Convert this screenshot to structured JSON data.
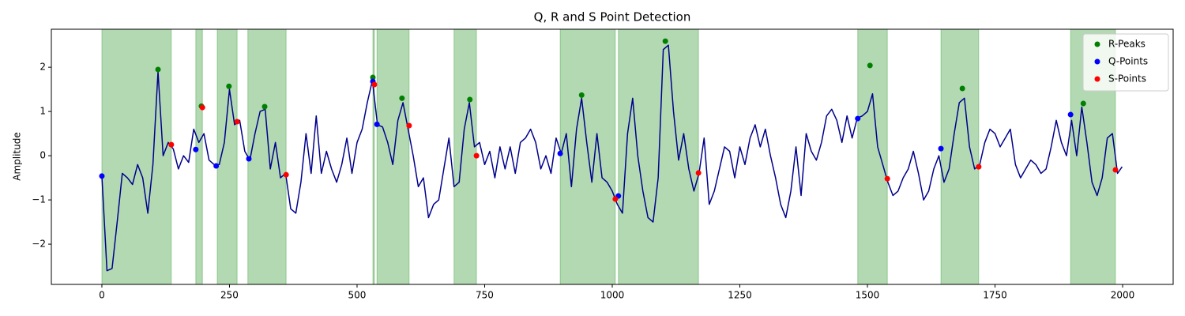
{
  "chart_data": {
    "type": "line",
    "title": "Q, R and S Point Detection",
    "ylabel": "Amplitude",
    "color": "#00008b",
    "x": [
      0,
      10,
      20,
      30,
      40,
      50,
      60,
      70,
      80,
      90,
      100,
      110,
      120,
      130,
      140,
      150,
      160,
      170,
      180,
      190,
      200,
      210,
      220,
      230,
      240,
      250,
      260,
      270,
      280,
      290,
      300,
      310,
      320,
      330,
      340,
      350,
      360,
      370,
      380,
      390,
      400,
      410,
      420,
      430,
      440,
      450,
      460,
      470,
      480,
      490,
      500,
      510,
      520,
      530,
      540,
      550,
      560,
      570,
      580,
      590,
      600,
      610,
      620,
      630,
      640,
      650,
      660,
      670,
      680,
      690,
      700,
      710,
      720,
      730,
      740,
      750,
      760,
      770,
      780,
      790,
      800,
      810,
      820,
      830,
      840,
      850,
      860,
      870,
      880,
      890,
      900,
      910,
      920,
      930,
      940,
      950,
      960,
      970,
      980,
      990,
      1000,
      1010,
      1020,
      1030,
      1040,
      1050,
      1060,
      1070,
      1080,
      1090,
      1100,
      1110,
      1120,
      1130,
      1140,
      1150,
      1160,
      1170,
      1180,
      1190,
      1200,
      1210,
      1220,
      1230,
      1240,
      1250,
      1260,
      1270,
      1280,
      1290,
      1300,
      1310,
      1320,
      1330,
      1340,
      1350,
      1360,
      1370,
      1380,
      1390,
      1400,
      1410,
      1420,
      1430,
      1440,
      1450,
      1460,
      1470,
      1480,
      1490,
      1500,
      1510,
      1520,
      1530,
      1540,
      1550,
      1560,
      1570,
      1580,
      1590,
      1600,
      1610,
      1620,
      1630,
      1640,
      1650,
      1660,
      1670,
      1680,
      1690,
      1700,
      1710,
      1720,
      1730,
      1740,
      1750,
      1760,
      1770,
      1780,
      1790,
      1800,
      1810,
      1820,
      1830,
      1840,
      1850,
      1860,
      1870,
      1880,
      1890,
      1900,
      1910,
      1920,
      1930,
      1940,
      1950,
      1960,
      1970,
      1980,
      1990,
      1999
    ],
    "values": [
      -0.46,
      -2.6,
      -2.55,
      -1.5,
      -0.4,
      -0.5,
      -0.65,
      -0.2,
      -0.5,
      -1.3,
      -0.2,
      1.9,
      0.0,
      0.3,
      0.15,
      -0.3,
      0.0,
      -0.15,
      0.6,
      0.3,
      0.5,
      -0.1,
      -0.2,
      -0.2,
      0.3,
      1.5,
      0.7,
      0.8,
      0.1,
      -0.1,
      0.5,
      1.0,
      1.05,
      -0.3,
      0.3,
      -0.5,
      -0.4,
      -1.2,
      -1.3,
      -0.6,
      0.5,
      -0.4,
      0.9,
      -0.4,
      0.1,
      -0.3,
      -0.6,
      -0.2,
      0.4,
      -0.4,
      0.3,
      0.6,
      1.2,
      1.7,
      0.7,
      0.65,
      0.3,
      -0.2,
      0.8,
      1.2,
      0.6,
      0.0,
      -0.7,
      -0.5,
      -1.4,
      -1.1,
      -1.0,
      -0.3,
      0.4,
      -0.7,
      -0.6,
      0.6,
      1.2,
      0.2,
      0.3,
      -0.2,
      0.1,
      -0.5,
      0.2,
      -0.3,
      0.2,
      -0.4,
      0.3,
      0.4,
      0.6,
      0.3,
      -0.3,
      0.0,
      -0.4,
      0.4,
      0.05,
      0.5,
      -0.7,
      0.6,
      1.3,
      0.3,
      -0.6,
      0.5,
      -0.5,
      -0.6,
      -0.8,
      -1.1,
      -1.3,
      0.5,
      1.3,
      0.0,
      -0.8,
      -1.4,
      -1.5,
      -0.5,
      2.4,
      2.5,
      1.0,
      -0.1,
      0.5,
      -0.3,
      -0.8,
      -0.4,
      0.4,
      -1.1,
      -0.8,
      -0.3,
      0.2,
      0.1,
      -0.5,
      0.2,
      -0.2,
      0.4,
      0.7,
      0.2,
      0.6,
      0.0,
      -0.5,
      -1.1,
      -1.4,
      -0.8,
      0.2,
      -0.9,
      0.5,
      0.1,
      -0.1,
      0.3,
      0.9,
      1.05,
      0.8,
      0.3,
      0.9,
      0.4,
      0.85,
      0.9,
      1.0,
      1.4,
      0.2,
      -0.2,
      -0.6,
      -0.9,
      -0.8,
      -0.5,
      -0.3,
      0.1,
      -0.4,
      -1.0,
      -0.8,
      -0.3,
      0.0,
      -0.6,
      -0.3,
      0.5,
      1.2,
      1.3,
      0.2,
      -0.3,
      -0.2,
      0.3,
      0.6,
      0.5,
      0.2,
      0.4,
      0.6,
      -0.2,
      -0.5,
      -0.3,
      -0.1,
      -0.2,
      -0.4,
      -0.3,
      0.2,
      0.8,
      0.3,
      0.0,
      0.8,
      0.0,
      1.1,
      0.3,
      -0.6,
      -0.9,
      -0.5,
      0.4,
      0.5,
      -0.4,
      -0.25
    ],
    "spans": [
      [
        0,
        136
      ],
      [
        184,
        197
      ],
      [
        226,
        265
      ],
      [
        286,
        361
      ],
      [
        531,
        534
      ],
      [
        539,
        602
      ],
      [
        690,
        734
      ],
      [
        898,
        1006
      ],
      [
        1012,
        1169
      ],
      [
        1481,
        1539
      ],
      [
        1644,
        1718
      ],
      [
        1898,
        1986
      ]
    ],
    "span_color": "#008000",
    "points": [
      {
        "name": "R-Peaks",
        "color": "#008000",
        "x": [
          110,
          195,
          249,
          319,
          531,
          588,
          721,
          940,
          1104,
          1505,
          1686,
          1923
        ],
        "values": [
          1.95,
          1.12,
          1.57,
          1.11,
          1.77,
          1.3,
          1.27,
          1.37,
          2.59,
          2.04,
          1.52,
          1.18
        ]
      },
      {
        "name": "Q-Points",
        "color": "#0000ff",
        "x": [
          0,
          184,
          224,
          288,
          531,
          539,
          898,
          1012,
          1481,
          1644,
          1898
        ],
        "values": [
          -0.46,
          0.14,
          -0.23,
          -0.07,
          1.68,
          0.71,
          0.05,
          -0.91,
          0.84,
          0.16,
          0.93
        ]
      },
      {
        "name": "S-Points",
        "color": "#ff0000",
        "x": [
          136,
          197,
          265,
          361,
          534,
          602,
          734,
          1006,
          1169,
          1539,
          1718,
          1986
        ],
        "values": [
          0.25,
          1.09,
          0.77,
          -0.43,
          1.61,
          0.68,
          0.0,
          -0.98,
          -0.39,
          -0.52,
          -0.25,
          -0.32
        ]
      }
    ],
    "xlim": [
      -99,
      2099
    ],
    "ylim": [
      -2.91,
      2.86
    ],
    "xticks": [
      0,
      250,
      500,
      750,
      1000,
      1250,
      1500,
      1750,
      2000
    ],
    "yticks": [
      {
        "value": -2,
        "label": "−2"
      },
      {
        "value": -1,
        "label": "−1"
      },
      0,
      1,
      2
    ],
    "legend": "upper right"
  }
}
